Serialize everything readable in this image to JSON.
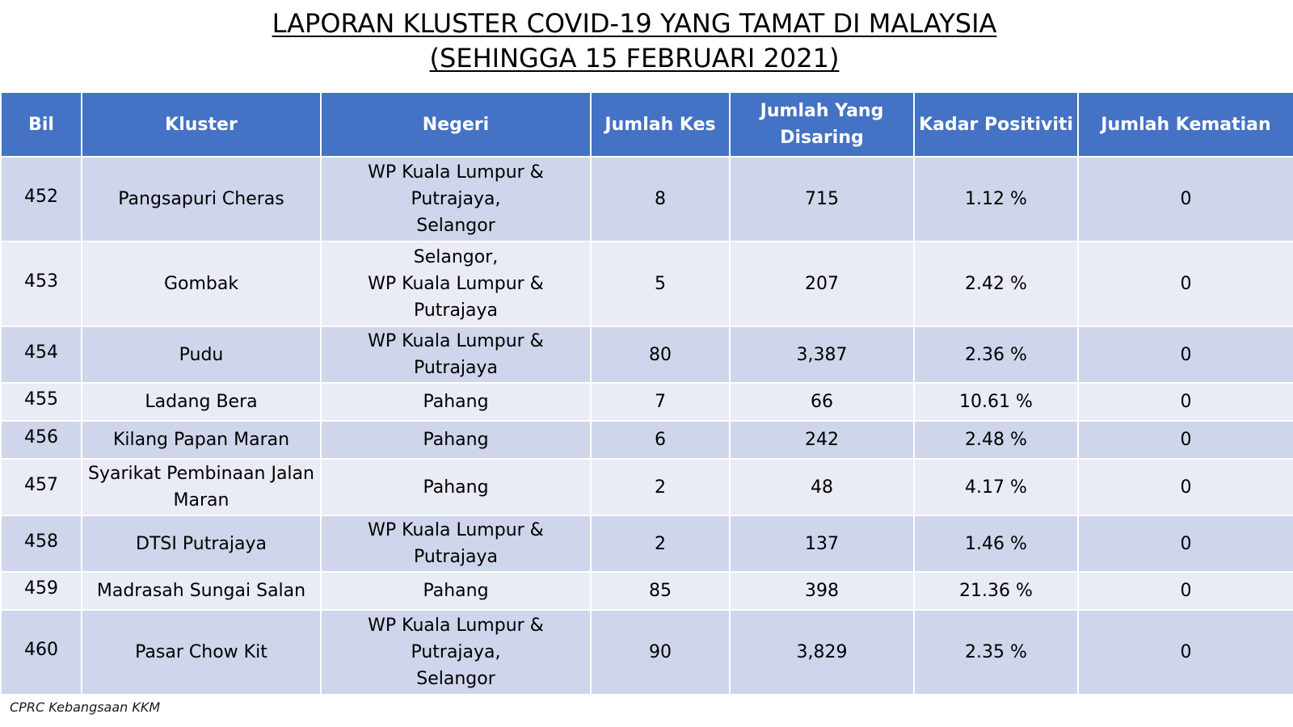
{
  "title": {
    "line1": "LAPORAN KLUSTER COVID-19 YANG TAMAT DI MALAYSIA",
    "line2": "(SEHINGGA 15 FEBRUARI 2021)"
  },
  "table": {
    "headers": [
      "Bil",
      "Kluster",
      "Negeri",
      "Jumlah Kes",
      "Jumlah Yang Disaring",
      "Kadar Positiviti",
      "Jumlah Kematian"
    ],
    "rows": [
      {
        "bil": "452",
        "kluster": "Pangsapuri Cheras",
        "negeri": [
          "WP Kuala Lumpur &",
          "Putrajaya,",
          "Selangor"
        ],
        "kes": "8",
        "disaring": "715",
        "positiviti": "1.12 %",
        "kematian": "0"
      },
      {
        "bil": "453",
        "kluster": "Gombak",
        "negeri": [
          "Selangor,",
          "WP Kuala Lumpur &",
          "Putrajaya"
        ],
        "kes": "5",
        "disaring": "207",
        "positiviti": "2.42 %",
        "kematian": "0"
      },
      {
        "bil": "454",
        "kluster": "Pudu",
        "negeri": [
          "WP Kuala Lumpur &",
          "Putrajaya"
        ],
        "kes": "80",
        "disaring": "3,387",
        "positiviti": "2.36 %",
        "kematian": "0"
      },
      {
        "bil": "455",
        "kluster": "Ladang Bera",
        "negeri": [
          "Pahang"
        ],
        "kes": "7",
        "disaring": "66",
        "positiviti": "10.61 %",
        "kematian": "0"
      },
      {
        "bil": "456",
        "kluster": "Kilang Papan Maran",
        "negeri": [
          "Pahang"
        ],
        "kes": "6",
        "disaring": "242",
        "positiviti": "2.48 %",
        "kematian": "0"
      },
      {
        "bil": "457",
        "kluster": "Syarikat Pembinaan Jalan Maran",
        "negeri": [
          "Pahang"
        ],
        "kes": "2",
        "disaring": "48",
        "positiviti": "4.17 %",
        "kematian": "0"
      },
      {
        "bil": "458",
        "kluster": "DTSI Putrajaya",
        "negeri": [
          "WP Kuala Lumpur &",
          "Putrajaya"
        ],
        "kes": "2",
        "disaring": "137",
        "positiviti": "1.46 %",
        "kematian": "0"
      },
      {
        "bil": "459",
        "kluster": "Madrasah Sungai Salan",
        "negeri": [
          "Pahang"
        ],
        "kes": "85",
        "disaring": "398",
        "positiviti": "21.36 %",
        "kematian": "0"
      },
      {
        "bil": "460",
        "kluster": "Pasar Chow Kit",
        "negeri": [
          "WP Kuala Lumpur &",
          "Putrajaya,",
          "Selangor"
        ],
        "kes": "90",
        "disaring": "3,829",
        "positiviti": "2.35 %",
        "kematian": "0"
      }
    ]
  },
  "footer": {
    "source": "CPRC Kebangsaan KKM"
  },
  "colors": {
    "header_bg": "#4472c4",
    "row_odd_bg": "#cfd5ea",
    "row_even_bg": "#e9ebf5"
  }
}
